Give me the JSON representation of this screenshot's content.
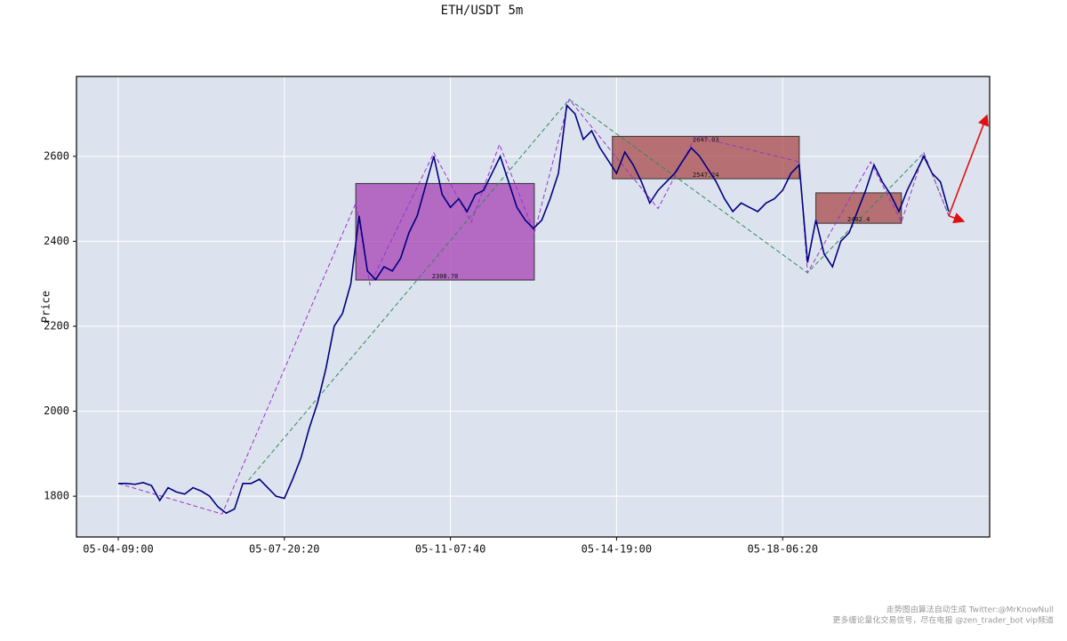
{
  "chart_data": {
    "type": "line",
    "title": "ETH/USDT 5m",
    "y_label": "Price",
    "categories": [
      "05-04-09:00",
      null,
      null,
      null,
      null,
      null,
      null,
      null,
      null,
      null,
      null,
      null,
      null,
      null,
      null,
      null,
      null,
      null,
      null,
      null,
      "05-07-20:20",
      null,
      null,
      null,
      null,
      null,
      null,
      null,
      null,
      null,
      null,
      null,
      null,
      null,
      null,
      null,
      null,
      null,
      null,
      null,
      "05-11-07:40",
      null,
      null,
      null,
      null,
      null,
      null,
      null,
      null,
      null,
      null,
      null,
      null,
      null,
      null,
      null,
      null,
      null,
      null,
      null,
      "05-14-19:00",
      null,
      null,
      null,
      null,
      null,
      null,
      null,
      null,
      null,
      null,
      null,
      null,
      null,
      null,
      null,
      null,
      null,
      null,
      null,
      "05-18-06:20",
      null,
      null,
      null,
      null,
      null,
      null,
      null,
      null,
      null,
      null,
      null,
      null,
      null,
      null,
      null,
      null,
      null,
      null,
      null,
      null
    ],
    "series": [
      {
        "color": "#000080",
        "values": [
          1830,
          1830,
          1828,
          1832,
          1825,
          1790,
          1820,
          1810,
          1805,
          1820,
          1812,
          1800,
          1775,
          1760,
          1770,
          1830,
          1830,
          1840,
          1820,
          1800,
          1795,
          1840,
          1890,
          1960,
          2020,
          2100,
          2200,
          2230,
          2300,
          2460,
          2330,
          2310,
          2340,
          2330,
          2360,
          2420,
          2460,
          2530,
          2600,
          2510,
          2480,
          2500,
          2470,
          2510,
          2520,
          2560,
          2600,
          2540,
          2480,
          2450,
          2430,
          2450,
          2500,
          2560,
          2720,
          2700,
          2640,
          2660,
          2620,
          2590,
          2560,
          2610,
          2580,
          2540,
          2490,
          2520,
          2540,
          2560,
          2590,
          2620,
          2600,
          2570,
          2540,
          2500,
          2470,
          2490,
          2480,
          2470,
          2490,
          2500,
          2520,
          2560,
          2580,
          2350,
          2450,
          2370,
          2340,
          2400,
          2420,
          2470,
          2520,
          2580,
          2540,
          2510,
          2470,
          2520,
          2560,
          2600,
          2560,
          2540,
          2470
        ]
      }
    ],
    "zigzags": [
      {
        "color": "#2e8b57",
        "x": [
          15.7,
          54.3,
          83,
          97,
          100
        ],
        "values": [
          1838,
          2734,
          2326,
          2608,
          2460
        ]
      },
      {
        "color": "#9932cc",
        "x": [
          0,
          12.5,
          28.6,
          30.3,
          38,
          42.5,
          45.9,
          50.1,
          54.3,
          65,
          69.5,
          82,
          83,
          90.6,
          94.3,
          97,
          100
        ],
        "values": [
          1830,
          1758,
          2490,
          2298,
          2608,
          2445,
          2628,
          2420,
          2734,
          2477,
          2647,
          2587,
          2326,
          2587,
          2445,
          2608,
          2460
        ]
      }
    ],
    "zones": [
      {
        "x0": 28.6,
        "x1": 50.1,
        "top": 2536,
        "bottom": 2308.78,
        "color": "#a640b3",
        "printed": [
          "bottom"
        ]
      },
      {
        "x0": 59.5,
        "x1": 82.0,
        "top": 2647.03,
        "bottom": 2547.24,
        "color": "#a84a4a",
        "printed": [
          "top",
          "bottom"
        ]
      },
      {
        "x0": 84.0,
        "x1": 94.3,
        "top": 2514,
        "bottom": 2442.4,
        "color": "#a84a4a",
        "printed": [
          "bottom"
        ]
      }
    ],
    "projections": {
      "color": "#e01010",
      "x0": 100,
      "y0": 2460,
      "x": [
        104.6,
        101.8
      ],
      "values": [
        2696,
        2447
      ]
    },
    "ylim": [
      1704,
      2788
    ],
    "yticks": [
      1800,
      2000,
      2200,
      2400,
      2600
    ],
    "grid": true,
    "footer_notes": [
      "走势图由算法自动生成  Twitter:@MrKnowNull",
      "更多缠论量化交易信号，尽在电报 @zen_trader_bot vip频道"
    ]
  }
}
